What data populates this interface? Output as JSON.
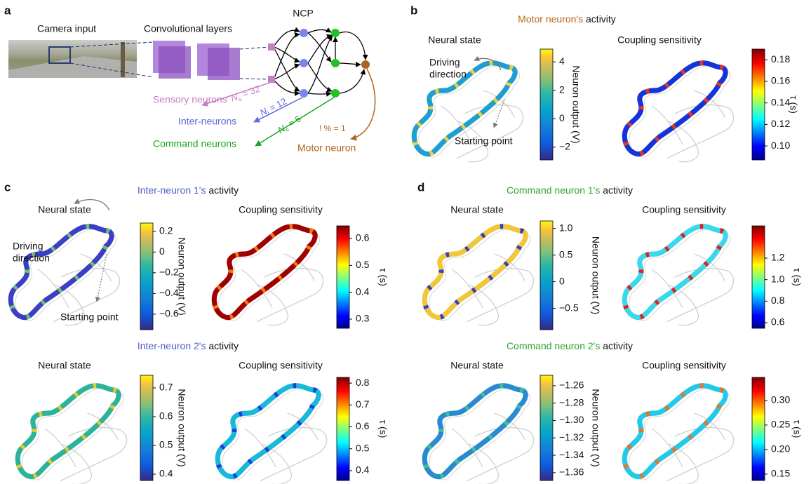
{
  "panel_a": {
    "label": "a",
    "camera_input": "Camera input",
    "conv_layers": "Convolutional layers",
    "ncp": "NCP",
    "sensory": {
      "label": "Sensory neurons",
      "symbol": "N",
      "sub": "s",
      "rest": " = 32"
    },
    "inter": {
      "label": "Inter-neurons",
      "symbol": "N",
      "sub": "i",
      "rest": " = 12"
    },
    "command": {
      "label": "Command neurons",
      "symbol": "N",
      "sub": "c",
      "rest": " = 6"
    },
    "motor": {
      "label": "Motor neuron",
      "count": "! % = 1"
    }
  },
  "activity_panels": [
    {
      "label": "b",
      "rows": [
        {
          "title_highlight": "Motor neuron's",
          "title_rest": " activity",
          "highlight_color": "#b8651b",
          "neural": {
            "title": "Neural state",
            "axis_label": "Neuron output (V)",
            "lim": [
              -2.9,
              4.9
            ],
            "ticks": [
              {
                "value": -2,
                "label": "−2"
              },
              0,
              2,
              4
            ]
          },
          "coupling": {
            "title": "Coupling sensitivity",
            "axis_label": "τ (s)",
            "lim": [
              0.087,
              0.19
            ],
            "ticks": [
              {
                "value": 0.1,
                "label": "0.10"
              },
              0.12,
              0.14,
              0.16,
              0.18
            ]
          },
          "driving_direction": [
            "Driving",
            "direction"
          ],
          "starting_point": "Starting point"
        }
      ]
    },
    {
      "label": "c",
      "rows": [
        {
          "title_highlight": "Inter-neuron 1's",
          "title_rest": " activity",
          "highlight_color": "#4f5fc8",
          "neural": {
            "title": "Neural state",
            "axis_label": "Neuron output (V)",
            "lim": [
              -0.75,
              0.28
            ],
            "ticks": [
              {
                "value": -0.6,
                "label": "−0.6"
              },
              {
                "value": -0.4,
                "label": "−0.4"
              },
              {
                "value": -0.2,
                "label": "−0.2"
              },
              0,
              0.2
            ]
          },
          "coupling": {
            "title": "Coupling sensitivity",
            "axis_label": "τ (s)",
            "lim": [
              0.266,
              0.647
            ],
            "ticks": [
              0.3,
              0.4,
              0.5,
              0.6
            ]
          },
          "driving_direction": [
            "Driving",
            "direction"
          ],
          "starting_point": "Starting point"
        },
        {
          "title_highlight": "Inter-neuron 2's",
          "title_rest": " activity",
          "highlight_color": "#4f5fc8",
          "neural": {
            "title": "Neural state",
            "axis_label": "Neuron output (V)",
            "lim": [
              0.378,
              0.744
            ],
            "ticks": [
              0.4,
              0.5,
              0.6,
              0.7
            ]
          },
          "coupling": {
            "title": "Coupling sensitivity",
            "axis_label": "τ (s)",
            "lim": [
              0.355,
              0.826
            ],
            "ticks": [
              0.4,
              0.5,
              0.6,
              0.7,
              0.8
            ]
          }
        }
      ]
    },
    {
      "label": "d",
      "rows": [
        {
          "title_highlight": "Command neuron 1's",
          "title_rest": " activity",
          "highlight_color": "#2ca52c",
          "neural": {
            "title": "Neural state",
            "axis_label": "Neuron output (V)",
            "lim": [
              -0.9,
              1.14
            ],
            "ticks": [
              {
                "value": -0.5,
                "label": "−0.5"
              },
              0,
              0.5,
              {
                "value": 1,
                "label": "1.0"
              }
            ]
          },
          "coupling": {
            "title": "Coupling sensitivity",
            "axis_label": "τ (s)",
            "lim": [
              0.548,
              1.5
            ],
            "ticks": [
              0.6,
              0.8,
              {
                "value": 1,
                "label": "1.0"
              },
              1.2
            ]
          }
        },
        {
          "title_highlight": "Command neuron 2's",
          "title_rest": " activity",
          "highlight_color": "#2ca52c",
          "neural": {
            "title": "Neural state",
            "axis_label": "Neuron output (V)",
            "lim": [
              -1.369,
              -1.248
            ],
            "ticks": [
              {
                "value": -1.36,
                "label": "−1.36"
              },
              {
                "value": -1.34,
                "label": "−1.34"
              },
              {
                "value": -1.32,
                "label": "−1.32"
              },
              {
                "value": -1.3,
                "label": "−1.30"
              },
              {
                "value": -1.28,
                "label": "−1.28"
              },
              {
                "value": -1.26,
                "label": "−1.26"
              }
            ]
          },
          "coupling": {
            "title": "Coupling sensitivity",
            "axis_label": "τ (s)",
            "lim": [
              0.137,
              0.347
            ],
            "ticks": [
              0.15,
              {
                "value": 0.2,
                "label": "0.20"
              },
              0.25,
              {
                "value": 0.3,
                "label": "0.30"
              }
            ]
          }
        }
      ]
    }
  ]
}
